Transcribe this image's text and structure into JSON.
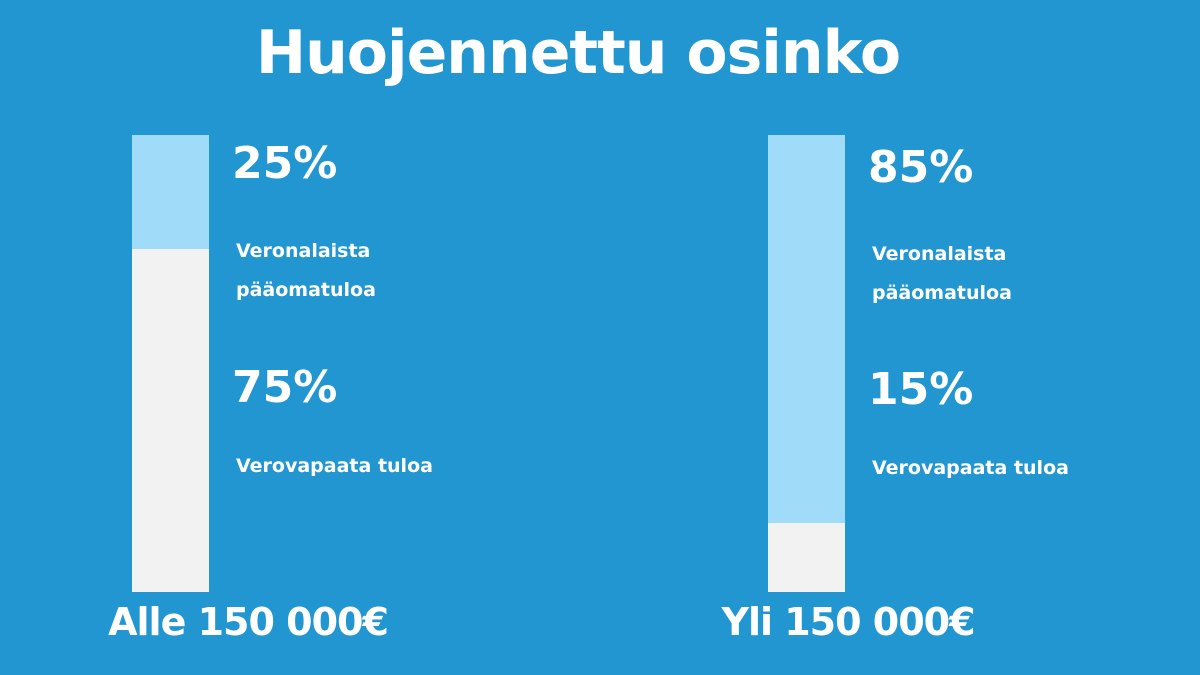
{
  "chart_data": {
    "type": "stacked-bar",
    "title": "Huojennettu osinko",
    "categories": [
      "Alle 150 000€",
      "Yli 150 000€"
    ],
    "series": [
      {
        "name": "Veronalaista pääomatuloa",
        "color": "#a0dcfa",
        "values": [
          25,
          85
        ],
        "value_labels": [
          "25%",
          "85%"
        ]
      },
      {
        "name": "Verovapaata tuloa",
        "color": "#f2f2f2",
        "values": [
          75,
          15
        ],
        "value_labels": [
          "75%",
          "15%"
        ]
      }
    ]
  }
}
